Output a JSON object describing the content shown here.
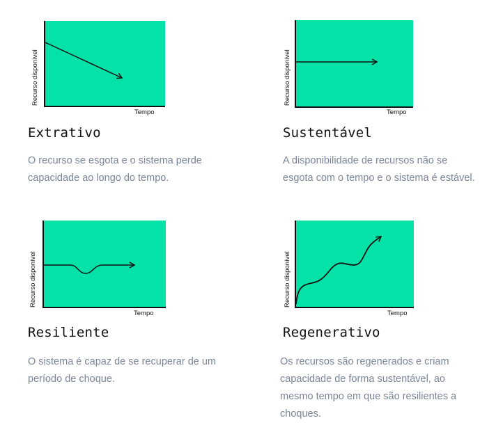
{
  "axis": {
    "ylabel": "Recurso disponível",
    "xlabel": "Tempo"
  },
  "panels": [
    {
      "title": "Extrativo",
      "description": "O recurso se esgota e o sistema perde capacidade ao longo do tempo.",
      "curve": "declining"
    },
    {
      "title": "Sustentável",
      "description": "A disponibilidade de recursos não se esgota com o tempo e o sistema é estável.",
      "curve": "flat"
    },
    {
      "title": "Resiliente",
      "description": "O sistema é capaz de se recuperar de um período de choque.",
      "curve": "dip-and-recover"
    },
    {
      "title": "Regenerativo",
      "description": "Os recursos são regenerados e criam capacidade de forma sustentável, ao mesmo tempo em que são resilientes a choques.",
      "curve": "rising"
    }
  ],
  "colors": {
    "plot_fill": "#04e2a8",
    "line": "#111111",
    "description_text": "#7a8597"
  }
}
